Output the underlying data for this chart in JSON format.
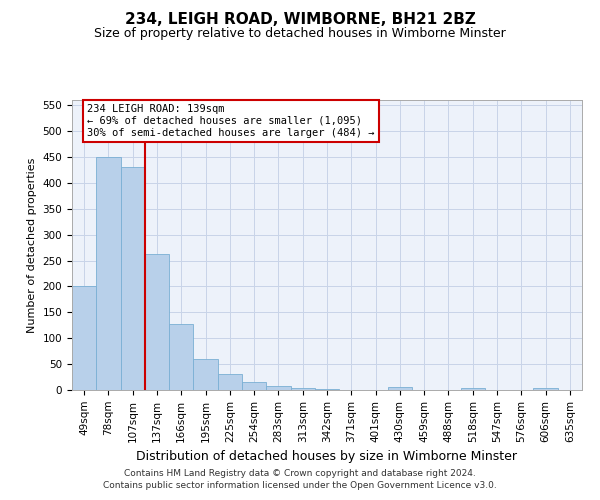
{
  "title1": "234, LEIGH ROAD, WIMBORNE, BH21 2BZ",
  "title2": "Size of property relative to detached houses in Wimborne Minster",
  "xlabel": "Distribution of detached houses by size in Wimborne Minster",
  "ylabel": "Number of detached properties",
  "footer1": "Contains HM Land Registry data © Crown copyright and database right 2024.",
  "footer2": "Contains public sector information licensed under the Open Government Licence v3.0.",
  "bin_labels": [
    "49sqm",
    "78sqm",
    "107sqm",
    "137sqm",
    "166sqm",
    "195sqm",
    "225sqm",
    "254sqm",
    "283sqm",
    "313sqm",
    "342sqm",
    "371sqm",
    "401sqm",
    "430sqm",
    "459sqm",
    "488sqm",
    "518sqm",
    "547sqm",
    "576sqm",
    "606sqm",
    "635sqm"
  ],
  "bar_values": [
    200,
    450,
    430,
    263,
    128,
    60,
    30,
    15,
    7,
    3,
    1,
    0,
    0,
    6,
    0,
    0,
    3,
    0,
    0,
    3,
    0
  ],
  "bar_color": "#b8d0ea",
  "bar_edge_color": "#7aafd4",
  "vline_color": "#cc0000",
  "annotation_line1": "234 LEIGH ROAD: 139sqm",
  "annotation_line2": "← 69% of detached houses are smaller (1,095)",
  "annotation_line3": "30% of semi-detached houses are larger (484) →",
  "annotation_box_color": "#ffffff",
  "annotation_box_edge": "#cc0000",
  "ylim": [
    0,
    560
  ],
  "yticks": [
    0,
    50,
    100,
    150,
    200,
    250,
    300,
    350,
    400,
    450,
    500,
    550
  ],
  "grid_color": "#c8d4e8",
  "bg_color": "#edf2fa",
  "title1_fontsize": 11,
  "title2_fontsize": 9,
  "ylabel_fontsize": 8,
  "xlabel_fontsize": 9,
  "tick_fontsize": 7.5,
  "footer_fontsize": 6.5
}
